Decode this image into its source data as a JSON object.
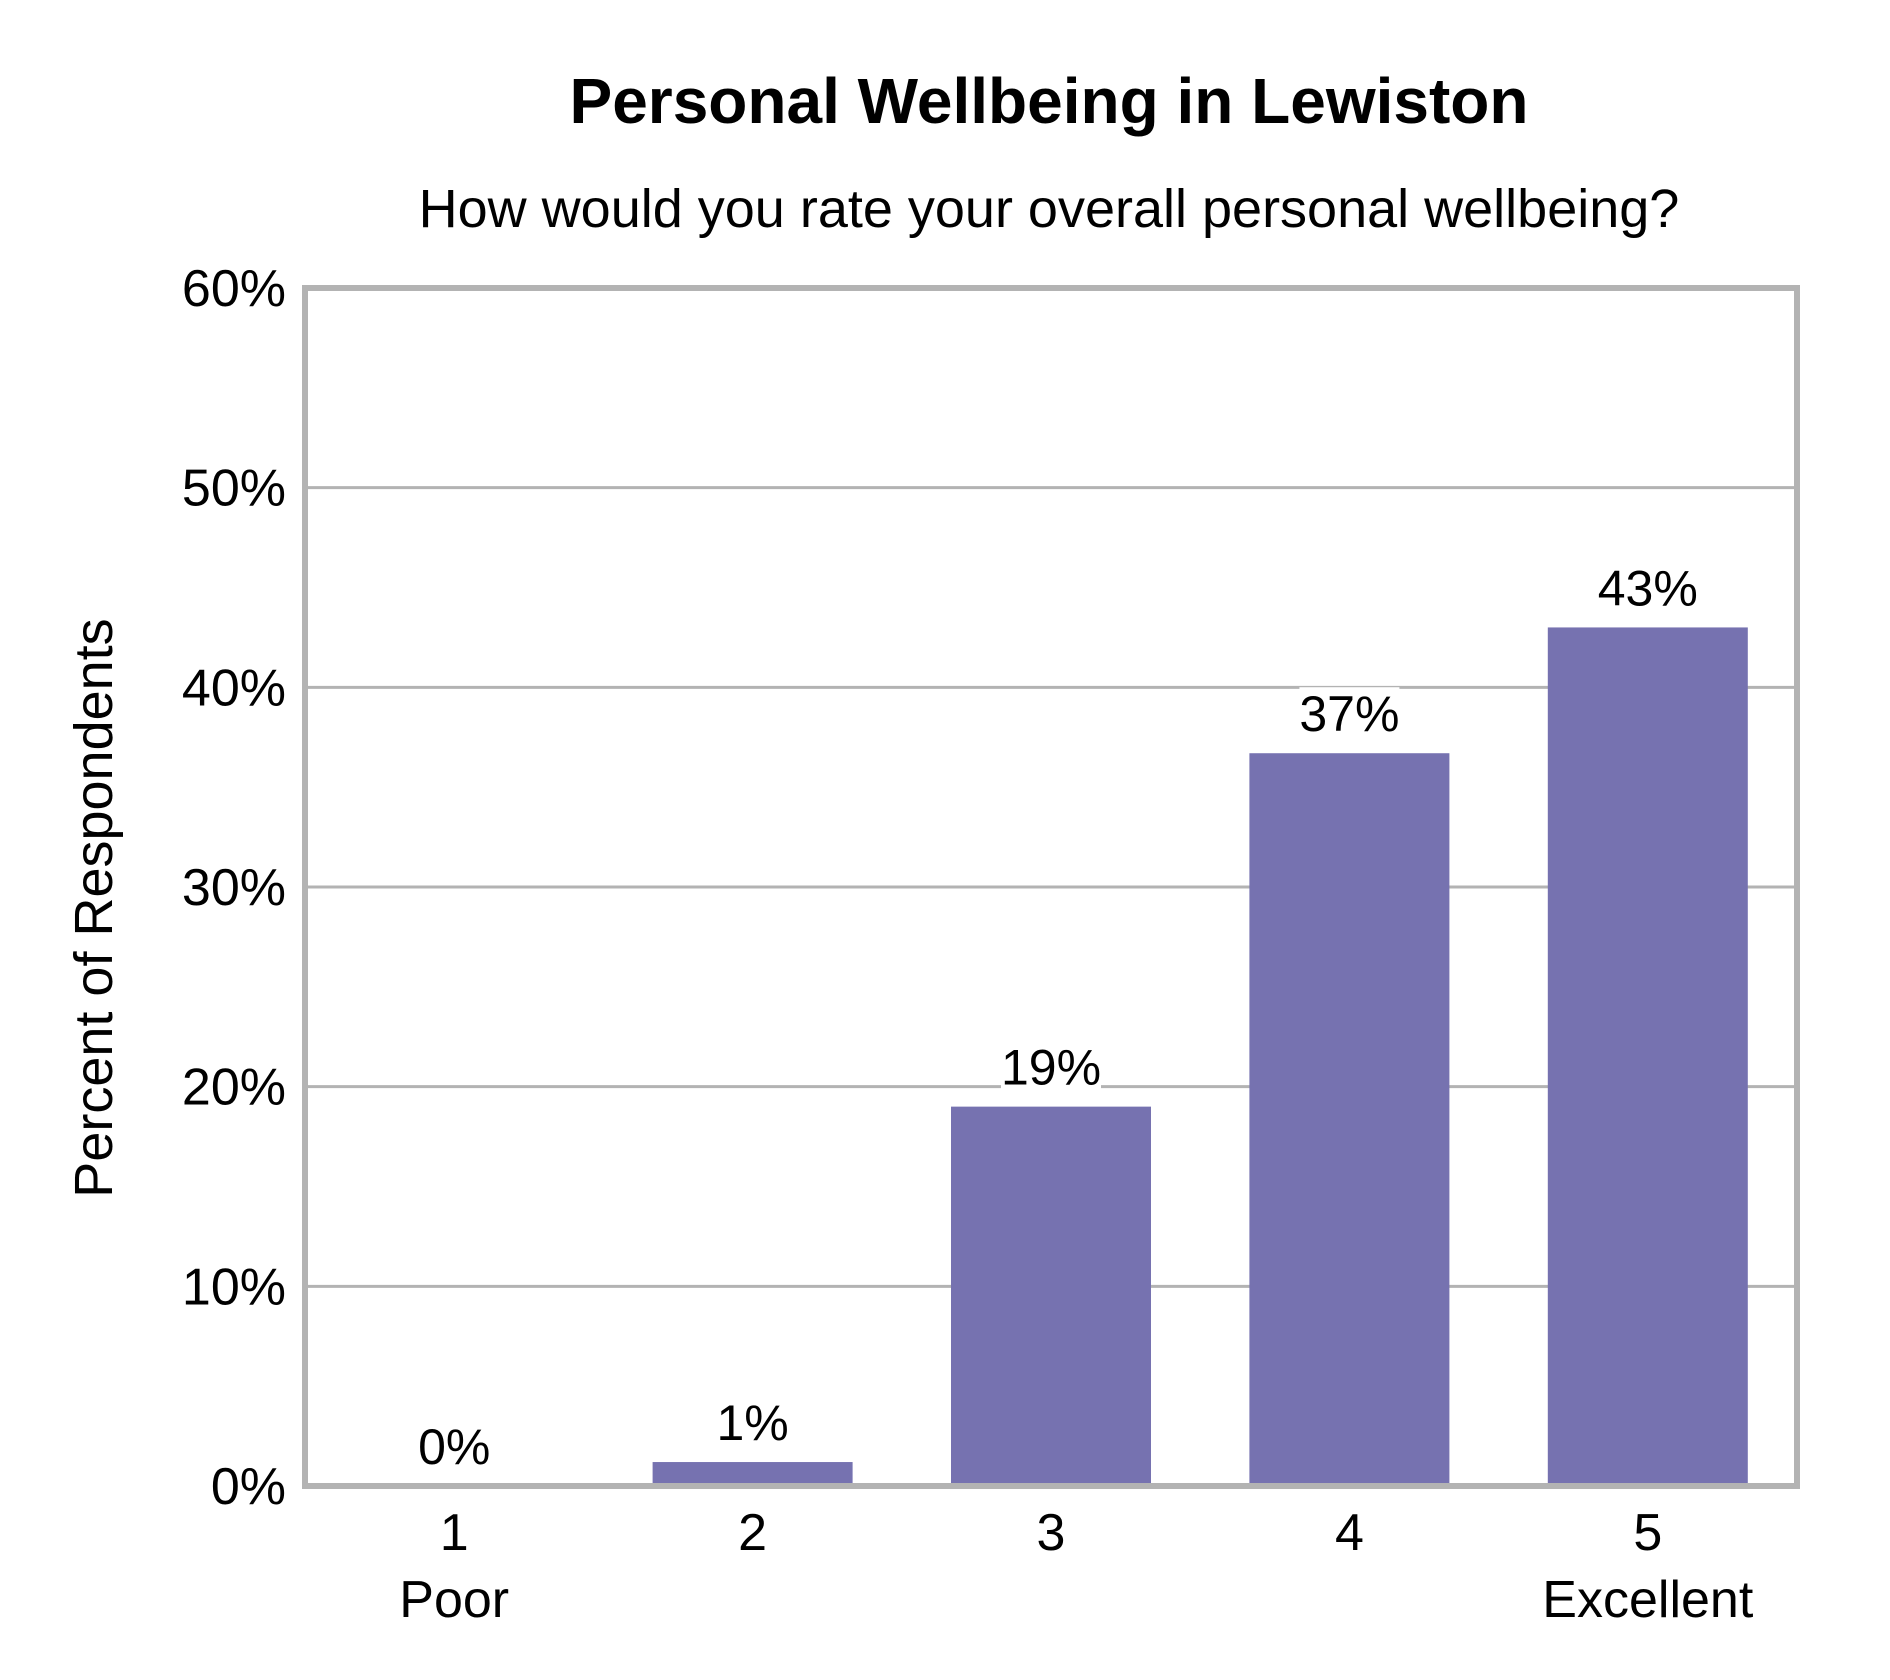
{
  "chart_data": {
    "type": "bar",
    "title": "Personal Wellbeing in Lewiston",
    "subtitle": "How would you rate your overall personal wellbeing?",
    "ylabel": "Percent of Respondents",
    "xlabel": "",
    "categories": [
      "1",
      "2",
      "3",
      "4",
      "5"
    ],
    "category_sublabels": [
      "Poor",
      "",
      "",
      "",
      "Excellent"
    ],
    "values": [
      0,
      1.2,
      19,
      36.7,
      43
    ],
    "data_labels": [
      "0%",
      "1%",
      "19%",
      "37%",
      "43%"
    ],
    "ylim": [
      0,
      60
    ],
    "yticks": [
      0,
      10,
      20,
      30,
      40,
      50,
      60
    ],
    "ytick_labels": [
      "0%",
      "10%",
      "20%",
      "30%",
      "40%",
      "50%",
      "60%"
    ],
    "grid": true,
    "bar_color": "#7672B0",
    "grid_color": "#B3B3B3",
    "frame_color": "#B3B3B3"
  }
}
